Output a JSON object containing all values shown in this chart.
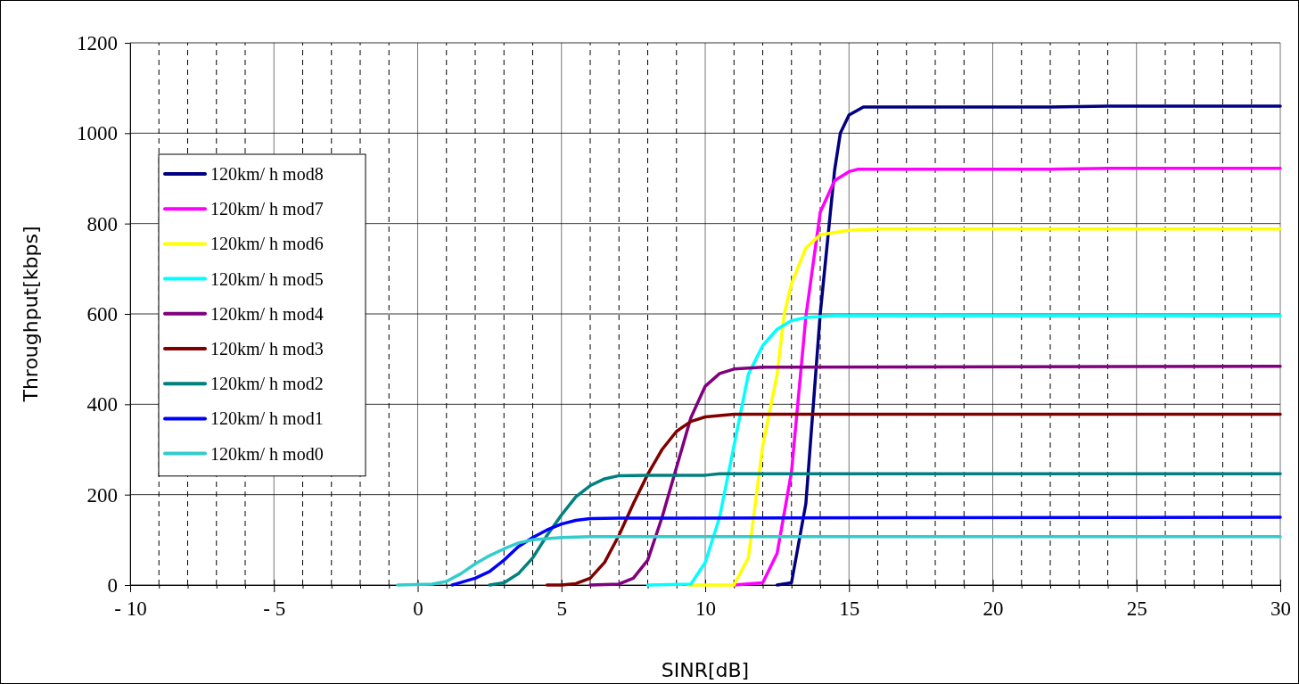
{
  "chart_data": {
    "type": "line",
    "xlabel": "SINR[dB]",
    "ylabel": "Throughput[kbps]",
    "xlim": [
      -10,
      30
    ],
    "ylim": [
      0,
      1200
    ],
    "xticks": [
      {
        "value": -10,
        "label": "- 10"
      },
      {
        "value": -9,
        "label": null
      },
      {
        "value": -8,
        "label": null
      },
      {
        "value": -7,
        "label": null
      },
      {
        "value": -6,
        "label": null
      },
      {
        "value": -5,
        "label": "- 5"
      },
      {
        "value": -4,
        "label": null
      },
      {
        "value": -3,
        "label": null
      },
      {
        "value": -2,
        "label": null
      },
      {
        "value": -1,
        "label": null
      },
      0,
      {
        "value": 1,
        "label": null
      },
      {
        "value": 2,
        "label": null
      },
      {
        "value": 3,
        "label": null
      },
      {
        "value": 4,
        "label": null
      },
      5,
      {
        "value": 6,
        "label": null
      },
      {
        "value": 7,
        "label": null
      },
      {
        "value": 8,
        "label": null
      },
      {
        "value": 9,
        "label": null
      },
      10,
      {
        "value": 11,
        "label": null
      },
      {
        "value": 12,
        "label": null
      },
      {
        "value": 13,
        "label": null
      },
      {
        "value": 14,
        "label": null
      },
      15,
      {
        "value": 16,
        "label": null
      },
      {
        "value": 17,
        "label": null
      },
      {
        "value": 18,
        "label": null
      },
      {
        "value": 19,
        "label": null
      },
      20,
      {
        "value": 21,
        "label": null
      },
      {
        "value": 22,
        "label": null
      },
      {
        "value": 23,
        "label": null
      },
      {
        "value": 24,
        "label": null
      },
      25,
      {
        "value": 26,
        "label": null
      },
      {
        "value": 27,
        "label": null
      },
      {
        "value": 28,
        "label": null
      },
      {
        "value": 29,
        "label": null
      },
      30
    ],
    "yticks": [
      0,
      200,
      400,
      600,
      800,
      1000,
      1200
    ],
    "grid": true,
    "legend": "left",
    "line_style": "solid",
    "marker": "none",
    "series": [
      {
        "name": "120km/ h mod8",
        "color": "#000080",
        "x": [
          12.5,
          13,
          13.5,
          14,
          14.5,
          14.7,
          15,
          15.5,
          22,
          24,
          30
        ],
        "values": [
          0,
          5,
          180,
          600,
          918,
          1000,
          1040,
          1058,
          1058,
          1060,
          1060
        ]
      },
      {
        "name": "120km/ h mod7",
        "color": "#ff00ff",
        "x": [
          11,
          12,
          12.5,
          13,
          13.5,
          14,
          14.5,
          15,
          15.3,
          22,
          24,
          30
        ],
        "values": [
          0,
          5,
          70,
          250,
          594,
          825,
          895,
          915,
          920,
          920,
          922,
          922
        ]
      },
      {
        "name": "120km/ h mod6",
        "color": "#ffff00",
        "x": [
          9.4,
          11,
          11.5,
          12,
          12.5,
          12.75,
          13,
          13.5,
          14,
          15,
          16,
          30
        ],
        "values": [
          0,
          0,
          60,
          308,
          466,
          600,
          667,
          746,
          775,
          785,
          788,
          788
        ]
      },
      {
        "name": "120km/ h mod5",
        "color": "#00ffff",
        "x": [
          8,
          9.5,
          10,
          10.5,
          11,
          11.5,
          12,
          12.5,
          13,
          13.5,
          14.5,
          30
        ],
        "values": [
          0,
          2,
          50,
          150,
          308,
          466,
          530,
          566,
          585,
          592,
          596,
          596
        ]
      },
      {
        "name": "120km/ h mod4",
        "color": "#800080",
        "x": [
          6,
          7,
          7.5,
          8,
          8.5,
          9,
          9.5,
          10,
          10.5,
          11,
          12,
          30
        ],
        "values": [
          0,
          2,
          15,
          55,
          150,
          260,
          370,
          440,
          468,
          478,
          482,
          484
        ]
      },
      {
        "name": "120km/ h mod3",
        "color": "#800000",
        "x": [
          4.5,
          5,
          5.5,
          6,
          6.5,
          7,
          7.5,
          8,
          8.5,
          9,
          9.5,
          10,
          11,
          30
        ],
        "values": [
          0,
          0,
          3,
          15,
          50,
          110,
          180,
          245,
          300,
          340,
          362,
          372,
          378,
          378
        ]
      },
      {
        "name": "120km/ h mod2",
        "color": "#008080",
        "x": [
          2.5,
          3,
          3.5,
          4,
          4.5,
          5,
          5.5,
          6,
          6.5,
          7,
          8,
          10,
          10.5,
          30
        ],
        "values": [
          0,
          5,
          25,
          60,
          110,
          155,
          195,
          220,
          235,
          242,
          243,
          243,
          246,
          246
        ]
      },
      {
        "name": "120km/ h mod1",
        "color": "#0000ff",
        "x": [
          1.2,
          2,
          2.5,
          3,
          3.5,
          4,
          4.5,
          5,
          5.5,
          6,
          7,
          30
        ],
        "values": [
          0,
          15,
          30,
          55,
          85,
          105,
          122,
          135,
          143,
          147,
          148,
          150
        ]
      },
      {
        "name": "120km/ h mod0",
        "color": "#33cccc",
        "x": [
          -0.7,
          0.5,
          1,
          1.5,
          2,
          2.5,
          3,
          3.5,
          4,
          5,
          6,
          30
        ],
        "values": [
          0,
          2,
          8,
          25,
          47,
          65,
          80,
          93,
          100,
          105,
          107,
          107
        ]
      }
    ]
  }
}
